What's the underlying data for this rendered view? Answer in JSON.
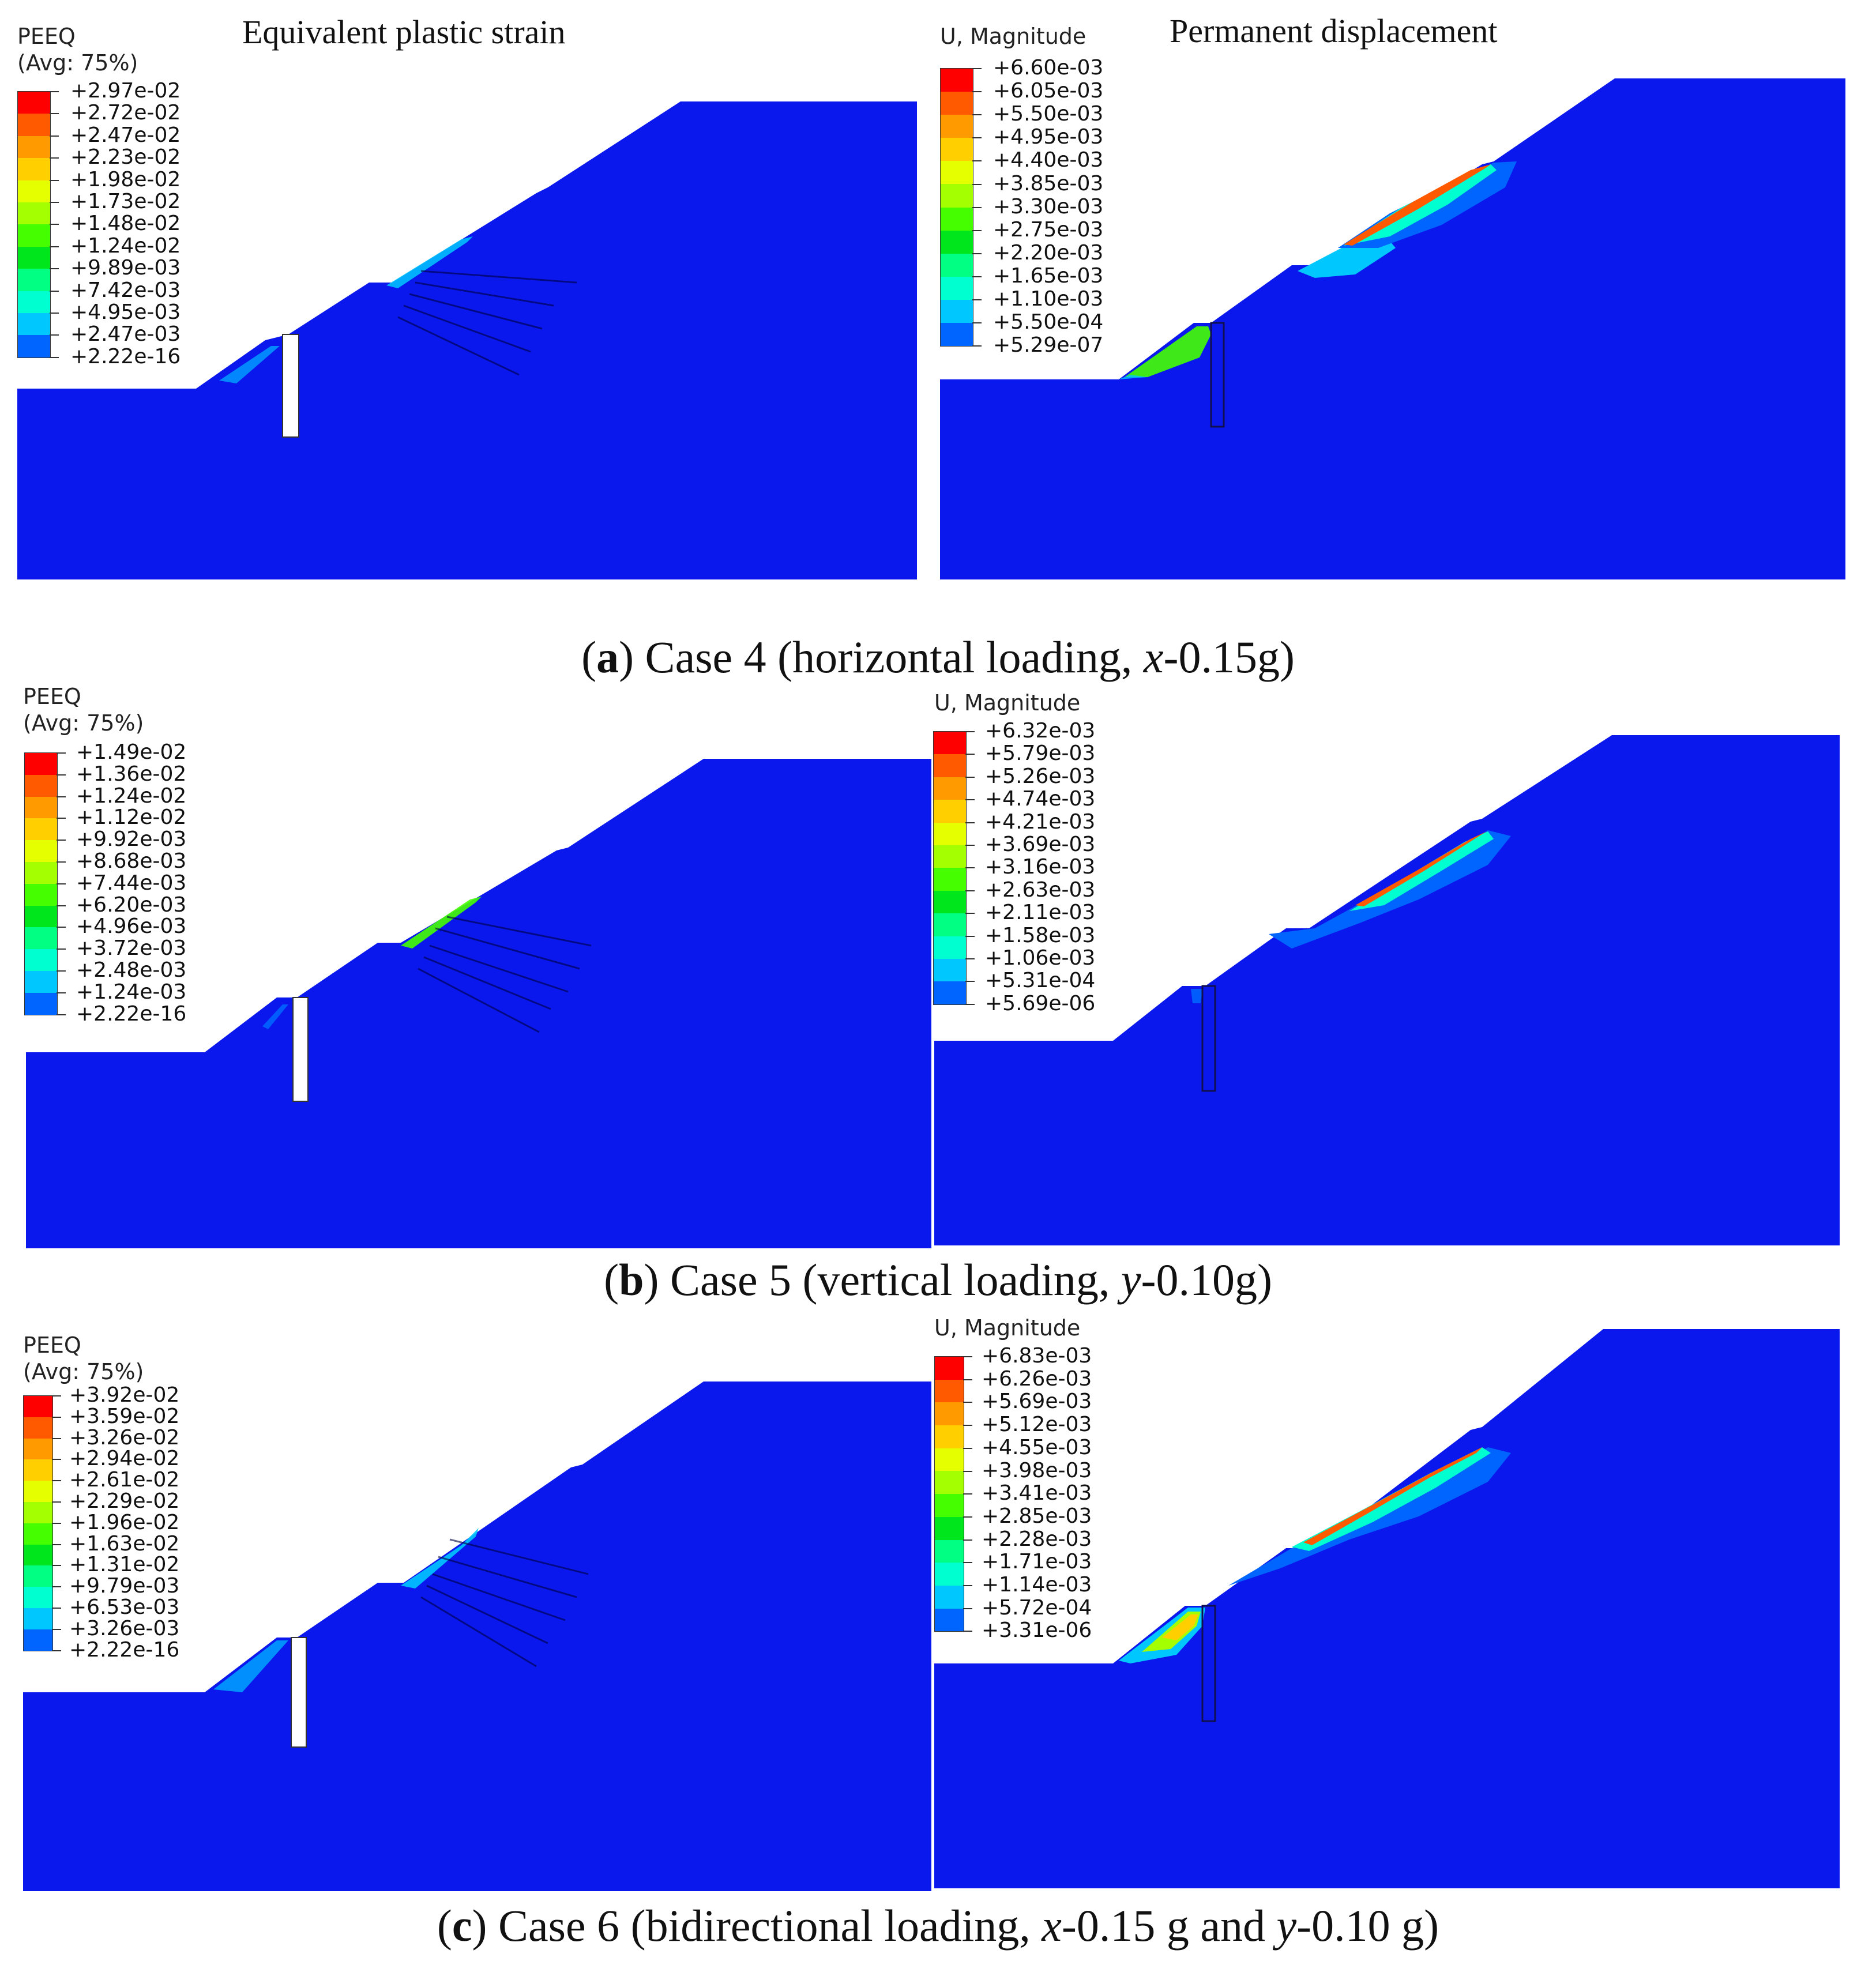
{
  "headings": {
    "left": "Equivalent plastic strain",
    "right": "Permanent displacement"
  },
  "colors": {
    "soil": "#0a18ee",
    "scale": [
      "#ff0000",
      "#ff5a00",
      "#ff9a00",
      "#ffcf00",
      "#e6ff00",
      "#a4ff00",
      "#45ff00",
      "#00e61c",
      "#00ff82",
      "#00ffd0",
      "#00c8ff",
      "#0064ff",
      "#0a18ee"
    ]
  },
  "rows": [
    {
      "caption": {
        "letter": "a",
        "text_before": "Case 4 (horizontal loading, ",
        "axis": "x",
        "text_after": "-0.15g)"
      },
      "peeq": {
        "title_line1": "PEEQ",
        "title_line2": "(Avg: 75%)",
        "labels": [
          "+2.97e-02",
          "+2.72e-02",
          "+2.47e-02",
          "+2.23e-02",
          "+1.98e-02",
          "+1.73e-02",
          "+1.48e-02",
          "+1.24e-02",
          "+9.89e-03",
          "+7.42e-03",
          "+4.95e-03",
          "+2.47e-03",
          "+2.22e-16"
        ]
      },
      "umag": {
        "title_line1": "U, Magnitude",
        "labels": [
          "+6.60e-03",
          "+6.05e-03",
          "+5.50e-03",
          "+4.95e-03",
          "+4.40e-03",
          "+3.85e-03",
          "+3.30e-03",
          "+2.75e-03",
          "+2.20e-03",
          "+1.65e-03",
          "+1.10e-03",
          "+5.50e-04",
          "+5.29e-07"
        ]
      }
    },
    {
      "caption": {
        "letter": "b",
        "text_before": "Case 5 (vertical loading, ",
        "axis": "y",
        "text_after": "-0.10g)"
      },
      "peeq": {
        "title_line1": "PEEQ",
        "title_line2": "(Avg: 75%)",
        "labels": [
          "+1.49e-02",
          "+1.36e-02",
          "+1.24e-02",
          "+1.12e-02",
          "+9.92e-03",
          "+8.68e-03",
          "+7.44e-03",
          "+6.20e-03",
          "+4.96e-03",
          "+3.72e-03",
          "+2.48e-03",
          "+1.24e-03",
          "+2.22e-16"
        ]
      },
      "umag": {
        "title_line1": "U, Magnitude",
        "labels": [
          "+6.32e-03",
          "+5.79e-03",
          "+5.26e-03",
          "+4.74e-03",
          "+4.21e-03",
          "+3.69e-03",
          "+3.16e-03",
          "+2.63e-03",
          "+2.11e-03",
          "+1.58e-03",
          "+1.06e-03",
          "+5.31e-04",
          "+5.69e-06"
        ]
      }
    },
    {
      "caption": {
        "letter": "c",
        "text_before": "Case 6 (bidirectional loading, ",
        "axis": "x",
        "text_mid": "-0.15 g and ",
        "axis2": "y",
        "text_after": "-0.10 g)"
      },
      "peeq": {
        "title_line1": "PEEQ",
        "title_line2": "(Avg: 75%)",
        "labels": [
          "+3.92e-02",
          "+3.59e-02",
          "+3.26e-02",
          "+2.94e-02",
          "+2.61e-02",
          "+2.29e-02",
          "+1.96e-02",
          "+1.63e-02",
          "+1.31e-02",
          "+9.79e-03",
          "+6.53e-03",
          "+3.26e-03",
          "+2.22e-16"
        ]
      },
      "umag": {
        "title_line1": "U, Magnitude",
        "labels": [
          "+6.83e-03",
          "+6.26e-03",
          "+5.69e-03",
          "+5.12e-03",
          "+4.55e-03",
          "+3.98e-03",
          "+3.41e-03",
          "+2.85e-03",
          "+2.28e-03",
          "+1.71e-03",
          "+1.14e-03",
          "+5.72e-04",
          "+3.31e-06"
        ]
      }
    }
  ]
}
